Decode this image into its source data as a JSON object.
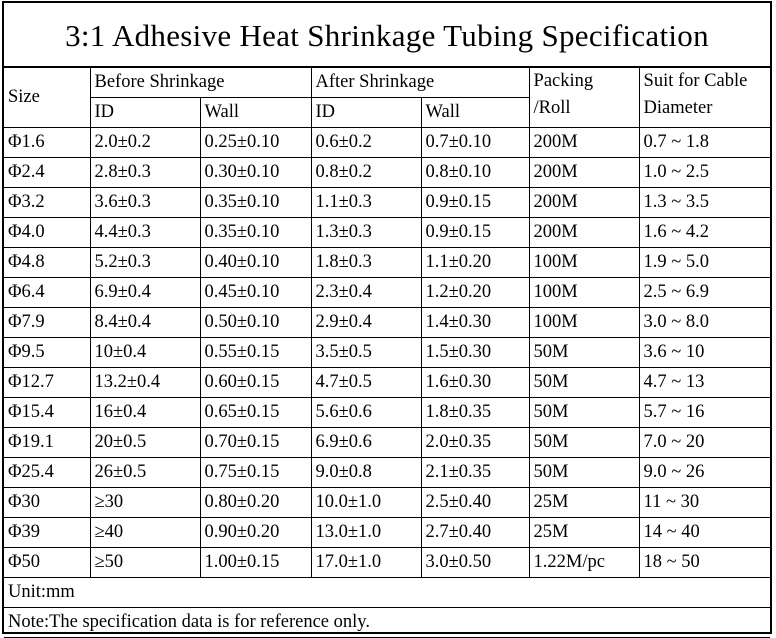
{
  "title": "3:1 Adhesive Heat Shrinkage Tubing Specification",
  "headers": {
    "size": "Size",
    "before": "Before Shrinkage",
    "after": "After Shrinkage",
    "packing_line1": "Packing",
    "packing_line2": "/Roll",
    "suit_line1": "Suit for Cable",
    "suit_line2": "Diameter",
    "before_id": "ID",
    "before_wall": "Wall",
    "after_id": "ID",
    "after_wall": "Wall"
  },
  "rows": [
    {
      "size": "Φ1.6",
      "before_id": "2.0±0.2",
      "before_wall": "0.25±0.10",
      "after_id": "0.6±0.2",
      "after_wall": "0.7±0.10",
      "packing": "200M",
      "cable": "0.7 ~ 1.8"
    },
    {
      "size": "Φ2.4",
      "before_id": "2.8±0.3",
      "before_wall": "0.30±0.10",
      "after_id": "0.8±0.2",
      "after_wall": "0.8±0.10",
      "packing": "200M",
      "cable": "1.0 ~ 2.5"
    },
    {
      "size": "Φ3.2",
      "before_id": "3.6±0.3",
      "before_wall": "0.35±0.10",
      "after_id": "1.1±0.3",
      "after_wall": "0.9±0.15",
      "packing": "200M",
      "cable": "1.3 ~ 3.5"
    },
    {
      "size": "Φ4.0",
      "before_id": "4.4±0.3",
      "before_wall": "0.35±0.10",
      "after_id": "1.3±0.3",
      "after_wall": "0.9±0.15",
      "packing": "200M",
      "cable": "1.6 ~ 4.2"
    },
    {
      "size": "Φ4.8",
      "before_id": "5.2±0.3",
      "before_wall": "0.40±0.10",
      "after_id": "1.8±0.3",
      "after_wall": "1.1±0.20",
      "packing": "100M",
      "cable": "1.9 ~ 5.0"
    },
    {
      "size": "Φ6.4",
      "before_id": "6.9±0.4",
      "before_wall": "0.45±0.10",
      "after_id": "2.3±0.4",
      "after_wall": "1.2±0.20",
      "packing": "100M",
      "cable": "2.5 ~ 6.9"
    },
    {
      "size": "Φ7.9",
      "before_id": "8.4±0.4",
      "before_wall": "0.50±0.10",
      "after_id": "2.9±0.4",
      "after_wall": "1.4±0.30",
      "packing": "100M",
      "cable": "3.0 ~ 8.0"
    },
    {
      "size": "Φ9.5",
      "before_id": "10±0.4",
      "before_wall": "0.55±0.15",
      "after_id": "3.5±0.5",
      "after_wall": "1.5±0.30",
      "packing": "50M",
      "cable": "3.6 ~ 10"
    },
    {
      "size": "Φ12.7",
      "before_id": "13.2±0.4",
      "before_wall": "0.60±0.15",
      "after_id": "4.7±0.5",
      "after_wall": "1.6±0.30",
      "packing": "50M",
      "cable": "4.7 ~ 13"
    },
    {
      "size": "Φ15.4",
      "before_id": "16±0.4",
      "before_wall": "0.65±0.15",
      "after_id": "5.6±0.6",
      "after_wall": "1.8±0.35",
      "packing": "50M",
      "cable": "5.7 ~ 16"
    },
    {
      "size": "Φ19.1",
      "before_id": "20±0.5",
      "before_wall": "0.70±0.15",
      "after_id": "6.9±0.6",
      "after_wall": "2.0±0.35",
      "packing": "50M",
      "cable": "7.0 ~ 20"
    },
    {
      "size": "Φ25.4",
      "before_id": "26±0.5",
      "before_wall": "0.75±0.15",
      "after_id": "9.0±0.8",
      "after_wall": "2.1±0.35",
      "packing": "50M",
      "cable": "9.0 ~ 26"
    },
    {
      "size": "Φ30",
      "before_id": "≥30",
      "before_wall": "0.80±0.20",
      "after_id": "10.0±1.0",
      "after_wall": "2.5±0.40",
      "packing": "25M",
      "cable": "11 ~ 30"
    },
    {
      "size": "Φ39",
      "before_id": "≥40",
      "before_wall": "0.90±0.20",
      "after_id": "13.0±1.0",
      "after_wall": "2.7±0.40",
      "packing": "25M",
      "cable": "14 ~ 40"
    },
    {
      "size": "Φ50",
      "before_id": "≥50",
      "before_wall": "1.00±0.15",
      "after_id": "17.0±1.0",
      "after_wall": "3.0±0.50",
      "packing": "1.22M/pc",
      "cable": "18 ~ 50"
    }
  ],
  "footer": {
    "unit": "Unit:mm",
    "note": "Note:The specification data is for reference only."
  }
}
